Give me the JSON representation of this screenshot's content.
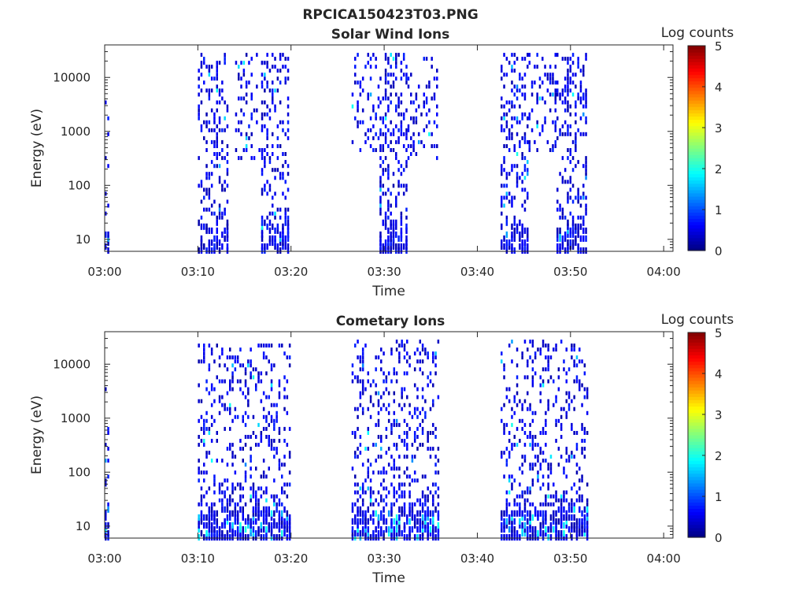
{
  "figure_title": "RPCICA150423T03.PNG",
  "chart_data": [
    {
      "type": "heatmap",
      "title": "Solar Wind Ions",
      "xlabel": "Time",
      "ylabel": "Energy (eV)",
      "x_ticks": [
        "03:00",
        "03:10",
        "03:20",
        "03:30",
        "03:40",
        "03:50",
        "04:00"
      ],
      "xlim_minutes": [
        0,
        61
      ],
      "y_scale": "log",
      "ylim": [
        6,
        40000
      ],
      "y_ticks": [
        10,
        100,
        1000,
        10000
      ],
      "y_tick_labels": [
        "10",
        "100",
        "1000",
        "10000"
      ],
      "colorbar": {
        "label": "Log counts",
        "range": [
          0,
          5
        ],
        "ticks": [
          "0",
          "1",
          "2",
          "3",
          "4",
          "5"
        ],
        "colormap": "jet"
      },
      "activity_intervals_minutes": [
        {
          "start": 0.0,
          "end": 0.5,
          "e_min": 6,
          "e_max": 8000,
          "density": 0.35
        },
        {
          "start": 10.0,
          "end": 13.2,
          "e_min": 6,
          "e_max": 30000,
          "density": 0.5
        },
        {
          "start": 14.0,
          "end": 17.0,
          "e_min": 300,
          "e_max": 30000,
          "density": 0.35
        },
        {
          "start": 16.8,
          "end": 19.8,
          "e_min": 6,
          "e_max": 30000,
          "density": 0.5
        },
        {
          "start": 26.5,
          "end": 29.5,
          "e_min": 400,
          "e_max": 30000,
          "density": 0.45
        },
        {
          "start": 29.5,
          "end": 32.5,
          "e_min": 6,
          "e_max": 30000,
          "density": 0.55
        },
        {
          "start": 32.5,
          "end": 35.8,
          "e_min": 300,
          "e_max": 30000,
          "density": 0.35
        },
        {
          "start": 42.5,
          "end": 45.5,
          "e_min": 6,
          "e_max": 30000,
          "density": 0.55
        },
        {
          "start": 45.5,
          "end": 48.5,
          "e_min": 400,
          "e_max": 30000,
          "density": 0.35
        },
        {
          "start": 48.5,
          "end": 51.8,
          "e_min": 6,
          "e_max": 30000,
          "density": 0.55
        }
      ],
      "peak_log_counts": 2
    },
    {
      "type": "heatmap",
      "title": "Cometary Ions",
      "xlabel": "Time",
      "ylabel": "Energy (eV)",
      "x_ticks": [
        "03:00",
        "03:10",
        "03:20",
        "03:30",
        "03:40",
        "03:50",
        "04:00"
      ],
      "xlim_minutes": [
        0,
        61
      ],
      "y_scale": "log",
      "ylim": [
        6,
        40000
      ],
      "y_ticks": [
        10,
        100,
        1000,
        10000
      ],
      "y_tick_labels": [
        "10",
        "100",
        "1000",
        "10000"
      ],
      "colorbar": {
        "label": "Log counts",
        "range": [
          0,
          5
        ],
        "ticks": [
          "0",
          "1",
          "2",
          "3",
          "4",
          "5"
        ],
        "colormap": "jet"
      },
      "activity_intervals_minutes": [
        {
          "start": 0.0,
          "end": 0.5,
          "e_min": 6,
          "e_max": 4000,
          "density": 0.3
        },
        {
          "start": 10.0,
          "end": 19.8,
          "e_min": 6,
          "e_max": 25000,
          "density": 0.4
        },
        {
          "start": 26.5,
          "end": 35.8,
          "e_min": 6,
          "e_max": 30000,
          "density": 0.4
        },
        {
          "start": 42.5,
          "end": 51.8,
          "e_min": 6,
          "e_max": 30000,
          "density": 0.4
        }
      ],
      "peak_log_counts": 2
    }
  ]
}
